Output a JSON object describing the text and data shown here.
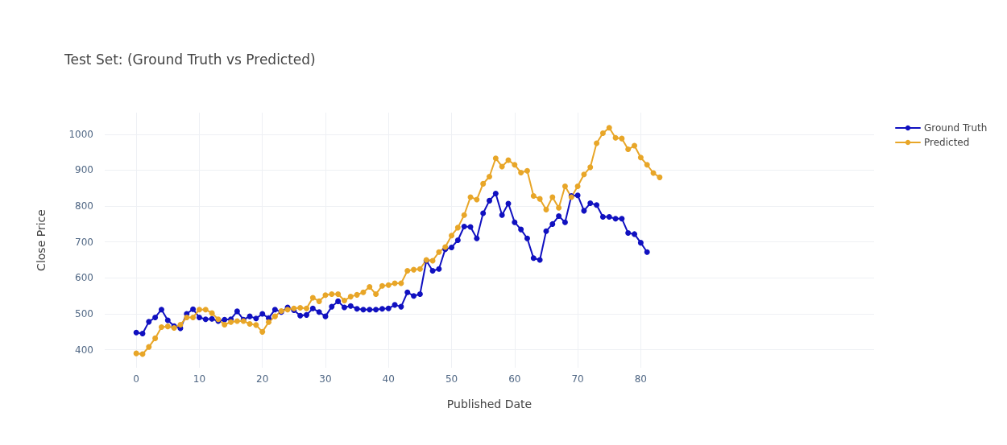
{
  "chart_data": {
    "type": "line",
    "title": "Test Set: (Ground Truth vs Predicted)",
    "xlabel": "Published Date",
    "ylabel": "Close Price",
    "x": [
      0,
      1,
      2,
      3,
      4,
      5,
      6,
      7,
      8,
      9,
      10,
      11,
      12,
      13,
      14,
      15,
      16,
      17,
      18,
      19,
      20,
      21,
      22,
      23,
      24,
      25,
      26,
      27,
      28,
      29,
      30,
      31,
      32,
      33,
      34,
      35,
      36,
      37,
      38,
      39,
      40,
      41,
      42,
      43,
      44,
      45,
      46,
      47,
      48,
      49,
      50,
      51,
      52,
      53,
      54,
      55,
      56,
      57,
      58,
      59,
      60,
      61,
      62,
      63,
      64,
      65,
      66,
      67,
      68,
      69,
      70,
      71,
      72,
      73,
      74,
      75,
      76,
      77,
      78,
      79,
      80,
      81,
      82,
      83
    ],
    "series": [
      {
        "name": "Ground Truth",
        "color": "#1010c0",
        "values": [
          448,
          445,
          478,
          490,
          512,
          482,
          466,
          460,
          500,
          513,
          490,
          485,
          486,
          480,
          484,
          485,
          507,
          484,
          493,
          487,
          500,
          488,
          512,
          505,
          518,
          510,
          495,
          497,
          515,
          505,
          493,
          520,
          535,
          518,
          522,
          514,
          512,
          512,
          512,
          514,
          515,
          525,
          520,
          560,
          550,
          555,
          648,
          620,
          625,
          680,
          685,
          705,
          743,
          742,
          710,
          780,
          815,
          835,
          775,
          807,
          755,
          735,
          710,
          655,
          650,
          730,
          750,
          772,
          755,
          828,
          830,
          787,
          808,
          803,
          770,
          770,
          765,
          765,
          725,
          722,
          698,
          672,
          null,
          null
        ]
      },
      {
        "name": "Predicted",
        "color": "#e8a628",
        "values": [
          390,
          388,
          408,
          432,
          463,
          465,
          461,
          470,
          490,
          490,
          512,
          512,
          502,
          485,
          470,
          477,
          480,
          480,
          472,
          469,
          450,
          477,
          493,
          508,
          512,
          515,
          517,
          515,
          545,
          535,
          552,
          555,
          555,
          537,
          548,
          553,
          560,
          575,
          555,
          578,
          580,
          585,
          585,
          620,
          623,
          625,
          650,
          648,
          672,
          686,
          718,
          740,
          775,
          825,
          818,
          862,
          882,
          933,
          910,
          928,
          915,
          893,
          898,
          828,
          820,
          790,
          825,
          795,
          855,
          825,
          855,
          888,
          908,
          975,
          1003,
          1018,
          990,
          988,
          958,
          968,
          935,
          915,
          892,
          880
        ]
      }
    ],
    "xlim": [
      -5,
      117
    ],
    "xticks": [
      0,
      10,
      20,
      30,
      40,
      50,
      60,
      70,
      80
    ],
    "ylim": [
      350,
      1060
    ],
    "yticks": [
      400,
      500,
      600,
      700,
      800,
      900,
      1000
    ],
    "grid": true,
    "legend": "top right",
    "marker": "circle",
    "line_style": "solid"
  }
}
